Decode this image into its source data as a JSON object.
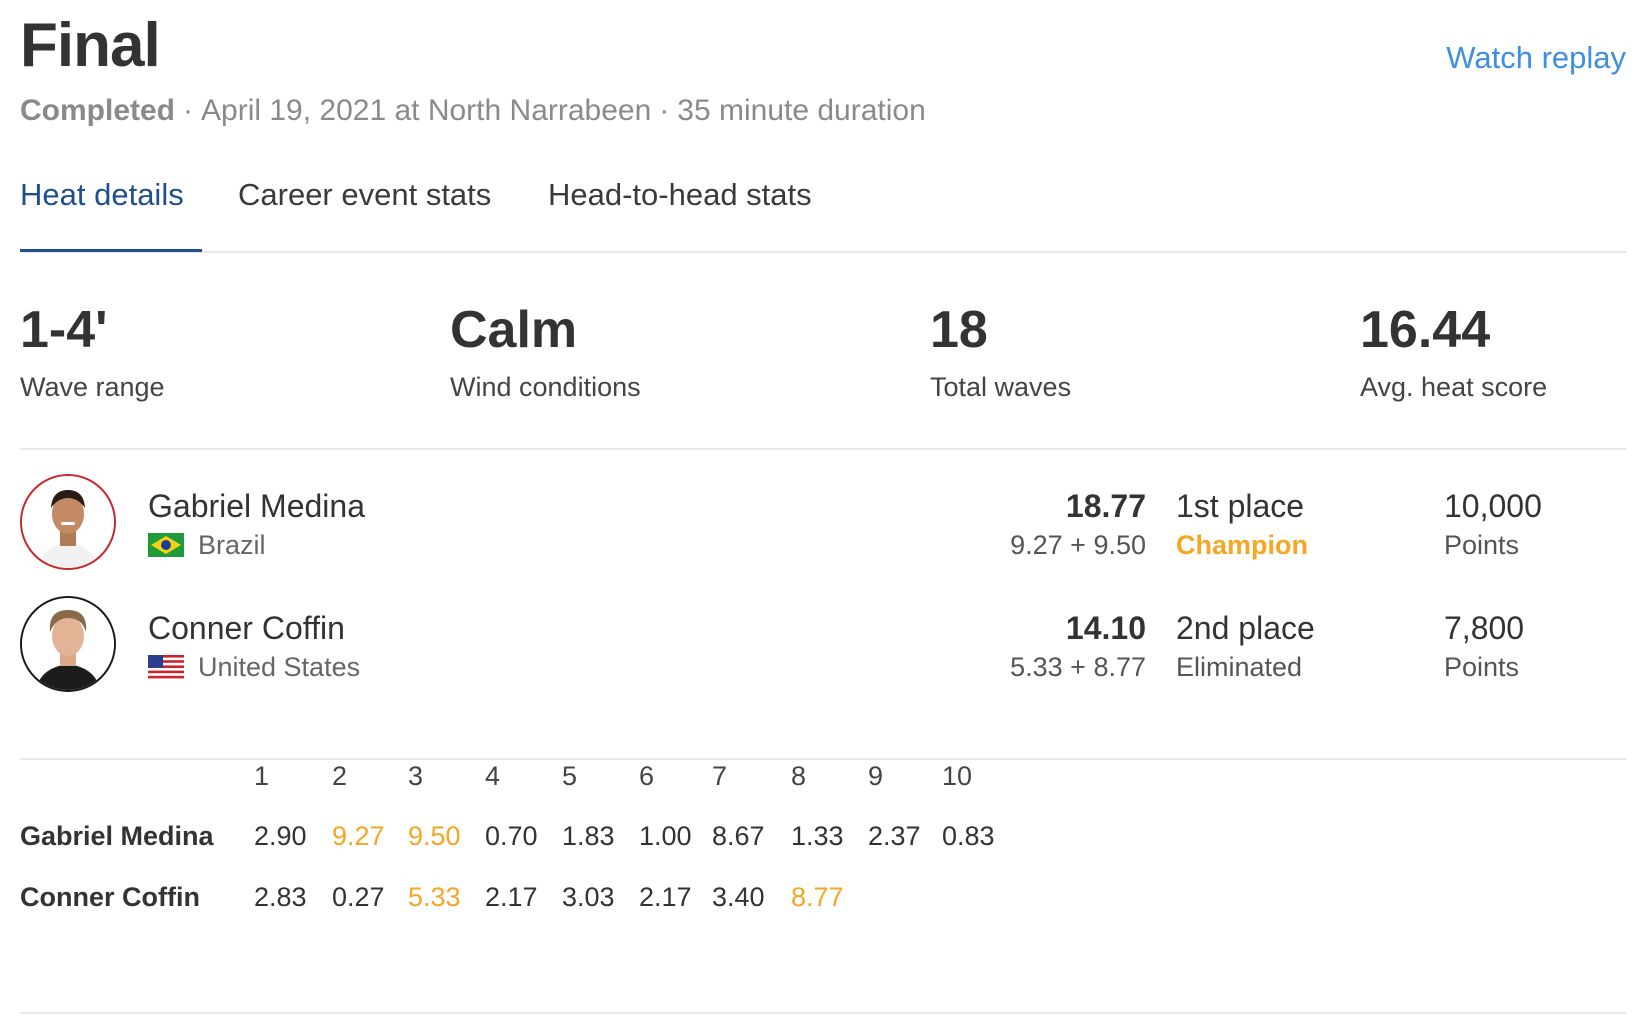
{
  "header": {
    "title": "Final",
    "replay_label": "Watch replay",
    "status": "Completed",
    "separator": "·",
    "date_location": "April 19, 2021 at North Narrabeen",
    "duration": "35 minute duration"
  },
  "tabs": [
    {
      "label": "Heat details",
      "active": true
    },
    {
      "label": "Career event stats",
      "active": false
    },
    {
      "label": "Head-to-head stats",
      "active": false
    }
  ],
  "stats": [
    {
      "value": "1-4'",
      "label": "Wave range"
    },
    {
      "value": "Calm",
      "label": "Wind conditions"
    },
    {
      "value": "18",
      "label": "Total waves"
    },
    {
      "value": "16.44",
      "label": "Avg. heat score"
    }
  ],
  "surfers": [
    {
      "name": "Gabriel Medina",
      "country": "Brazil",
      "flag_icon": "brazil-flag-icon",
      "avatar_ring_color": "#c8262b",
      "total": "18.77",
      "waves": "9.27 + 9.50",
      "place": "1st place",
      "result": "Champion",
      "points": "10,000",
      "points_label": "Points"
    },
    {
      "name": "Conner Coffin",
      "country": "United States",
      "flag_icon": "usa-flag-icon",
      "avatar_ring_color": "#1a1a1a",
      "total": "14.10",
      "waves": "5.33 + 8.77",
      "place": "2nd place",
      "result": "Eliminated",
      "points": "7,800",
      "points_label": "Points"
    }
  ],
  "wave_table": {
    "columns": [
      "1",
      "2",
      "3",
      "4",
      "5",
      "6",
      "7",
      "8",
      "9",
      "10"
    ],
    "rows": [
      {
        "name": "Gabriel Medina",
        "scores": [
          "2.90",
          "9.27",
          "9.50",
          "0.70",
          "1.83",
          "1.00",
          "8.67",
          "1.33",
          "2.37",
          "0.83"
        ],
        "highlight": [
          1,
          2
        ]
      },
      {
        "name": "Conner Coffin",
        "scores": [
          "2.83",
          "0.27",
          "5.33",
          "2.17",
          "3.03",
          "2.17",
          "3.40",
          "8.77"
        ],
        "highlight": [
          2,
          7
        ]
      }
    ]
  },
  "colors": {
    "accent_blue": "#3d8fe0",
    "tab_active": "#1f4f8f",
    "highlight_orange": "#f5a623"
  }
}
